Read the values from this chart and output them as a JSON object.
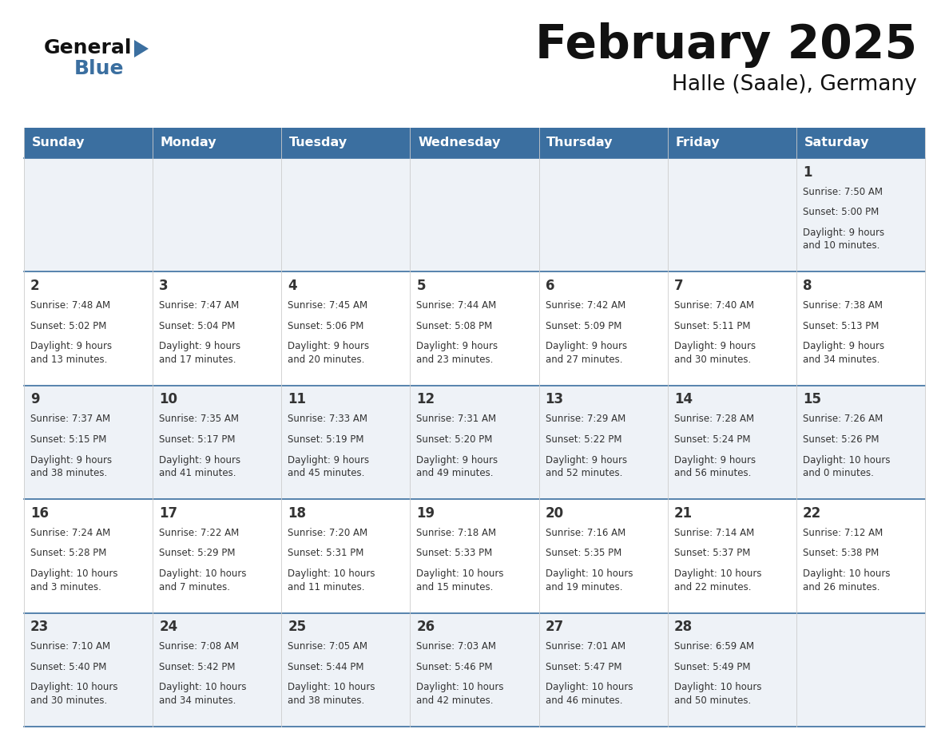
{
  "title": "February 2025",
  "subtitle": "Halle (Saale), Germany",
  "header_bg_color": "#3b6fa0",
  "header_text_color": "#ffffff",
  "day_names": [
    "Sunday",
    "Monday",
    "Tuesday",
    "Wednesday",
    "Thursday",
    "Friday",
    "Saturday"
  ],
  "bg_color": "#ffffff",
  "cell_bg_light": "#eef2f7",
  "cell_bg_white": "#ffffff",
  "grid_line_color": "#3b6fa0",
  "date_color": "#333333",
  "text_color": "#333333",
  "title_color": "#111111",
  "subtitle_color": "#111111",
  "logo_general_color": "#111111",
  "logo_blue_color": "#3b6fa0",
  "logo_triangle_color": "#3b6fa0",
  "days": [
    {
      "day": 1,
      "col": 6,
      "row": 0,
      "sunrise": "7:50 AM",
      "sunset": "5:00 PM",
      "daylight": "9 hours and 10 minutes"
    },
    {
      "day": 2,
      "col": 0,
      "row": 1,
      "sunrise": "7:48 AM",
      "sunset": "5:02 PM",
      "daylight": "9 hours and 13 minutes"
    },
    {
      "day": 3,
      "col": 1,
      "row": 1,
      "sunrise": "7:47 AM",
      "sunset": "5:04 PM",
      "daylight": "9 hours and 17 minutes"
    },
    {
      "day": 4,
      "col": 2,
      "row": 1,
      "sunrise": "7:45 AM",
      "sunset": "5:06 PM",
      "daylight": "9 hours and 20 minutes"
    },
    {
      "day": 5,
      "col": 3,
      "row": 1,
      "sunrise": "7:44 AM",
      "sunset": "5:08 PM",
      "daylight": "9 hours and 23 minutes"
    },
    {
      "day": 6,
      "col": 4,
      "row": 1,
      "sunrise": "7:42 AM",
      "sunset": "5:09 PM",
      "daylight": "9 hours and 27 minutes"
    },
    {
      "day": 7,
      "col": 5,
      "row": 1,
      "sunrise": "7:40 AM",
      "sunset": "5:11 PM",
      "daylight": "9 hours and 30 minutes"
    },
    {
      "day": 8,
      "col": 6,
      "row": 1,
      "sunrise": "7:38 AM",
      "sunset": "5:13 PM",
      "daylight": "9 hours and 34 minutes"
    },
    {
      "day": 9,
      "col": 0,
      "row": 2,
      "sunrise": "7:37 AM",
      "sunset": "5:15 PM",
      "daylight": "9 hours and 38 minutes"
    },
    {
      "day": 10,
      "col": 1,
      "row": 2,
      "sunrise": "7:35 AM",
      "sunset": "5:17 PM",
      "daylight": "9 hours and 41 minutes"
    },
    {
      "day": 11,
      "col": 2,
      "row": 2,
      "sunrise": "7:33 AM",
      "sunset": "5:19 PM",
      "daylight": "9 hours and 45 minutes"
    },
    {
      "day": 12,
      "col": 3,
      "row": 2,
      "sunrise": "7:31 AM",
      "sunset": "5:20 PM",
      "daylight": "9 hours and 49 minutes"
    },
    {
      "day": 13,
      "col": 4,
      "row": 2,
      "sunrise": "7:29 AM",
      "sunset": "5:22 PM",
      "daylight": "9 hours and 52 minutes"
    },
    {
      "day": 14,
      "col": 5,
      "row": 2,
      "sunrise": "7:28 AM",
      "sunset": "5:24 PM",
      "daylight": "9 hours and 56 minutes"
    },
    {
      "day": 15,
      "col": 6,
      "row": 2,
      "sunrise": "7:26 AM",
      "sunset": "5:26 PM",
      "daylight": "10 hours and 0 minutes"
    },
    {
      "day": 16,
      "col": 0,
      "row": 3,
      "sunrise": "7:24 AM",
      "sunset": "5:28 PM",
      "daylight": "10 hours and 3 minutes"
    },
    {
      "day": 17,
      "col": 1,
      "row": 3,
      "sunrise": "7:22 AM",
      "sunset": "5:29 PM",
      "daylight": "10 hours and 7 minutes"
    },
    {
      "day": 18,
      "col": 2,
      "row": 3,
      "sunrise": "7:20 AM",
      "sunset": "5:31 PM",
      "daylight": "10 hours and 11 minutes"
    },
    {
      "day": 19,
      "col": 3,
      "row": 3,
      "sunrise": "7:18 AM",
      "sunset": "5:33 PM",
      "daylight": "10 hours and 15 minutes"
    },
    {
      "day": 20,
      "col": 4,
      "row": 3,
      "sunrise": "7:16 AM",
      "sunset": "5:35 PM",
      "daylight": "10 hours and 19 minutes"
    },
    {
      "day": 21,
      "col": 5,
      "row": 3,
      "sunrise": "7:14 AM",
      "sunset": "5:37 PM",
      "daylight": "10 hours and 22 minutes"
    },
    {
      "day": 22,
      "col": 6,
      "row": 3,
      "sunrise": "7:12 AM",
      "sunset": "5:38 PM",
      "daylight": "10 hours and 26 minutes"
    },
    {
      "day": 23,
      "col": 0,
      "row": 4,
      "sunrise": "7:10 AM",
      "sunset": "5:40 PM",
      "daylight": "10 hours and 30 minutes"
    },
    {
      "day": 24,
      "col": 1,
      "row": 4,
      "sunrise": "7:08 AM",
      "sunset": "5:42 PM",
      "daylight": "10 hours and 34 minutes"
    },
    {
      "day": 25,
      "col": 2,
      "row": 4,
      "sunrise": "7:05 AM",
      "sunset": "5:44 PM",
      "daylight": "10 hours and 38 minutes"
    },
    {
      "day": 26,
      "col": 3,
      "row": 4,
      "sunrise": "7:03 AM",
      "sunset": "5:46 PM",
      "daylight": "10 hours and 42 minutes"
    },
    {
      "day": 27,
      "col": 4,
      "row": 4,
      "sunrise": "7:01 AM",
      "sunset": "5:47 PM",
      "daylight": "10 hours and 46 minutes"
    },
    {
      "day": 28,
      "col": 5,
      "row": 4,
      "sunrise": "6:59 AM",
      "sunset": "5:49 PM",
      "daylight": "10 hours and 50 minutes"
    }
  ]
}
